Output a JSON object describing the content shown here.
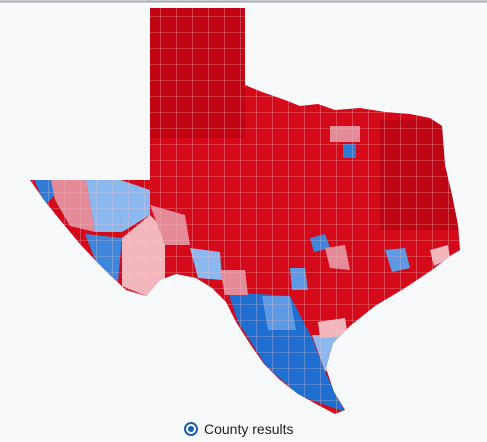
{
  "toggle": {
    "label": "County results"
  }
}
